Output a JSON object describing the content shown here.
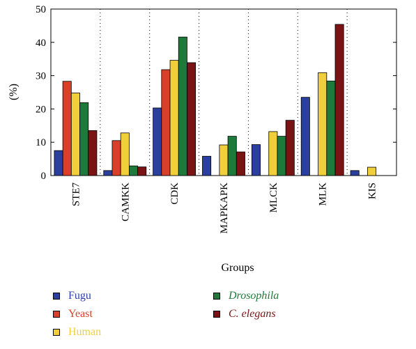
{
  "chart_data": {
    "type": "bar",
    "title": "",
    "xlabel": "Groups",
    "ylabel": "(%)",
    "ylim": [
      0,
      50
    ],
    "yticks": [
      0,
      10,
      20,
      30,
      40,
      50
    ],
    "grid": "vertical dotted separators between groups",
    "legend_placement": "bottom",
    "categories": [
      "STE7",
      "CAMKK",
      "CDK",
      "MAPKAPK",
      "MLCK",
      "MLK",
      "KIS"
    ],
    "series": [
      {
        "name": "Fugu",
        "color": "#2b3f9e",
        "italic": false,
        "values": [
          7.5,
          1.5,
          20.3,
          5.8,
          9.3,
          23.5,
          1.5
        ]
      },
      {
        "name": "Yeast",
        "color": "#d9402a",
        "italic": false,
        "values": [
          28.3,
          10.5,
          31.8,
          0,
          0,
          0,
          0
        ]
      },
      {
        "name": "Human",
        "color": "#f0cf3a",
        "italic": false,
        "values": [
          24.8,
          12.8,
          34.6,
          9.2,
          13.2,
          30.9,
          2.5
        ]
      },
      {
        "name": "Drosophila",
        "color": "#1d7a3a",
        "italic": true,
        "values": [
          21.9,
          2.9,
          41.6,
          11.8,
          11.8,
          28.4,
          0
        ]
      },
      {
        "name": "C. elegans",
        "color": "#7a1414",
        "italic": true,
        "values": [
          13.5,
          2.6,
          33.9,
          7.1,
          16.6,
          45.4,
          0
        ]
      }
    ]
  }
}
